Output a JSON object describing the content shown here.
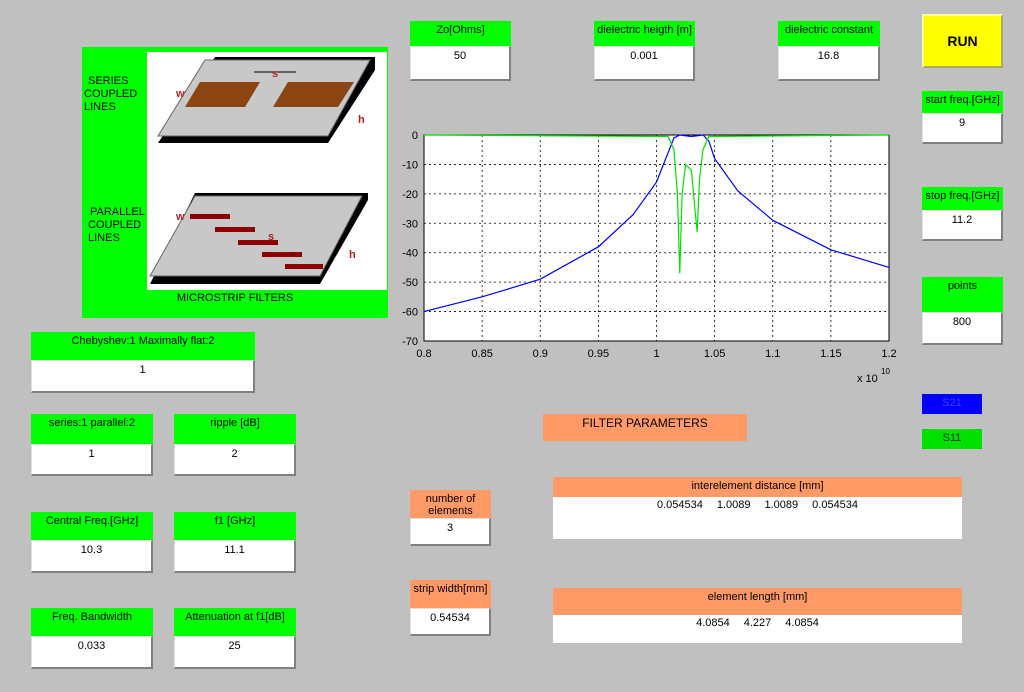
{
  "image_panel": {
    "series_label": [
      "SERIES",
      "COUPLED",
      "LINES"
    ],
    "parallel_label": [
      "PARALLEL",
      "COUPLED",
      "LINES"
    ],
    "caption": "MICROSTRIP FILTERS",
    "series_marks": {
      "w": "w",
      "s": "s",
      "h": "h"
    },
    "parallel_marks": {
      "w": "w",
      "s": "s",
      "h": "h"
    }
  },
  "substrate": [
    {
      "label": "Zo[Ohms]",
      "value": 50
    },
    {
      "label": "dielectric heigth [m]",
      "value": 0.001
    },
    {
      "label": "dielectric constant",
      "value": 16.8
    }
  ],
  "run_button": "RUN",
  "sweep": [
    {
      "label": "start freq.[GHz]",
      "value": 9
    },
    {
      "label": "stop freq.[GHz]",
      "value": 11.2
    },
    {
      "label": "points",
      "value": 800
    }
  ],
  "design": [
    {
      "label": "Chebyshev:1  Maximally flat:2",
      "value": 1
    },
    {
      "label": "series:1  parallel:2",
      "value": 1
    },
    {
      "label": "ripple [dB]",
      "value": 2
    },
    {
      "label": "Central Freq.[GHz]",
      "value": 10.3
    },
    {
      "label": "f1 [GHz]",
      "value": 11.1
    },
    {
      "label": "Freq. Bandwidth",
      "value": 0.033
    },
    {
      "label": "Attenuation at f1[dB]",
      "value": 25
    }
  ],
  "filter_parameters": {
    "title": "FILTER PARAMETERS",
    "number_of_elements": {
      "label": "number of elements",
      "value": 3
    },
    "strip_width": {
      "label": "strip width[mm]",
      "value": 0.54534
    },
    "interelement_distance": {
      "label": "interelement distance [mm]",
      "values": [
        0.054534,
        1.0089,
        1.0089,
        0.054534
      ]
    },
    "element_length": {
      "label": "element length [mm]",
      "values": [
        4.0854,
        4.227,
        4.0854
      ]
    }
  },
  "chart_data": {
    "type": "line",
    "xlim": [
      0.8,
      1.2
    ],
    "ylim": [
      -70,
      0
    ],
    "xticks": [
      0.8,
      0.85,
      0.9,
      0.95,
      1,
      1.05,
      1.1,
      1.15,
      1.2
    ],
    "yticks": [
      0,
      -10,
      -20,
      -30,
      -40,
      -50,
      -60,
      -70
    ],
    "x_multiplier": "x 10",
    "x_multiplier_exponent": "10",
    "grid": true,
    "series": [
      {
        "name": "S21",
        "color": "#0000ff",
        "x": [
          0.8,
          0.85,
          0.9,
          0.95,
          0.98,
          1.0,
          1.01,
          1.015,
          1.02,
          1.03,
          1.04,
          1.045,
          1.05,
          1.07,
          1.1,
          1.15,
          1.2
        ],
        "values": [
          -60,
          -55,
          -49,
          -38,
          -27,
          -16,
          -6,
          -1,
          0,
          -0.5,
          0,
          -2,
          -8,
          -19,
          -29,
          -39,
          -45
        ]
      },
      {
        "name": "S11",
        "color": "#00e000",
        "x": [
          0.8,
          1.01,
          1.015,
          1.018,
          1.02,
          1.022,
          1.025,
          1.03,
          1.033,
          1.035,
          1.037,
          1.04,
          1.045,
          1.2
        ],
        "values": [
          0,
          -0.5,
          -5,
          -20,
          -47,
          -20,
          -10,
          -12,
          -25,
          -33,
          -15,
          -5,
          -0.5,
          0
        ]
      }
    ]
  }
}
